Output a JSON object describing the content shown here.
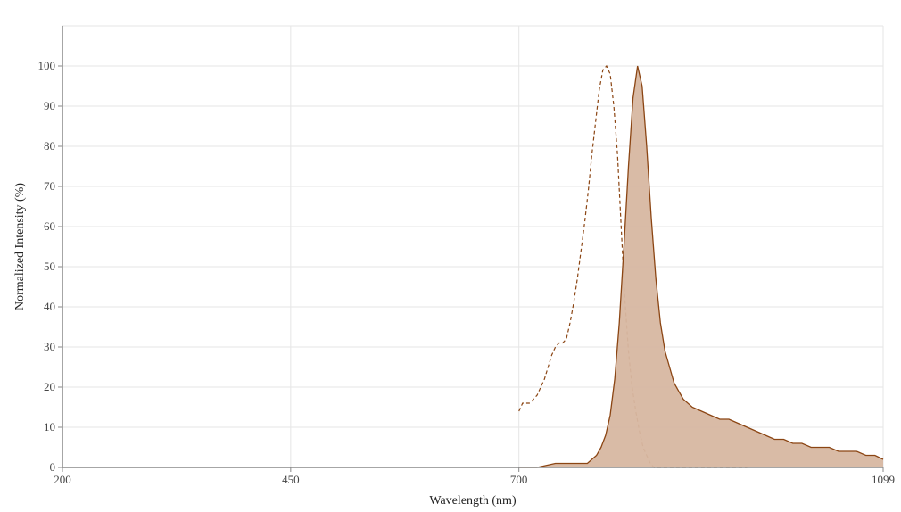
{
  "colors": {
    "background": "#ffffff",
    "grid": "#e6e6e6",
    "axis": "#888888",
    "emission_line": "#8b4513",
    "emission_fill": "#d7b7a1",
    "excitation_line": "#8b4513"
  },
  "chart_data": {
    "type": "area",
    "title": "",
    "xlabel": "Wavelength (nm)",
    "ylabel": "Normalized Intensity (%)",
    "xlim": [
      200,
      1099
    ],
    "ylim": [
      0,
      110
    ],
    "xticks": [
      200,
      450,
      700,
      1099
    ],
    "yticks": [
      0,
      10,
      20,
      30,
      40,
      50,
      60,
      70,
      80,
      90,
      100
    ],
    "grid": true,
    "series": [
      {
        "style": "dashed-line",
        "x": [
          700,
          704,
          708,
          712,
          716,
          720,
          724,
          728,
          732,
          736,
          740,
          744,
          748,
          752,
          756,
          760,
          764,
          768,
          772,
          776,
          780,
          784,
          788,
          792,
          796,
          800,
          804,
          808,
          812,
          816,
          820,
          824,
          828,
          832,
          836,
          840,
          844,
          848,
          852,
          856,
          860,
          864,
          870,
          876,
          900,
          950
        ],
        "values": [
          14,
          16,
          16,
          16,
          17,
          18,
          20,
          22,
          25,
          28,
          30,
          31,
          31,
          32,
          36,
          41,
          47,
          54,
          61,
          69,
          78,
          86,
          94,
          99,
          100,
          98,
          90,
          78,
          60,
          42,
          29,
          20,
          14,
          9,
          5,
          3,
          1,
          0,
          0,
          0,
          0,
          0,
          0,
          0,
          0,
          0
        ]
      },
      {
        "style": "filled-area",
        "x": [
          700,
          720,
          740,
          760,
          770,
          775,
          780,
          785,
          790,
          795,
          800,
          805,
          810,
          815,
          820,
          825,
          830,
          835,
          840,
          845,
          850,
          855,
          860,
          870,
          880,
          890,
          900,
          910,
          920,
          930,
          940,
          950,
          960,
          970,
          980,
          990,
          1000,
          1010,
          1020,
          1030,
          1040,
          1050,
          1060,
          1070,
          1080,
          1090,
          1099
        ],
        "values": [
          0,
          0,
          1,
          1,
          1,
          1,
          2,
          3,
          5,
          8,
          13,
          22,
          36,
          55,
          75,
          92,
          100,
          95,
          80,
          62,
          47,
          36,
          29,
          21,
          17,
          15,
          14,
          13,
          12,
          12,
          11,
          10,
          9,
          8,
          7,
          7,
          6,
          6,
          5,
          5,
          5,
          4,
          4,
          4,
          3,
          3,
          2
        ]
      }
    ]
  }
}
